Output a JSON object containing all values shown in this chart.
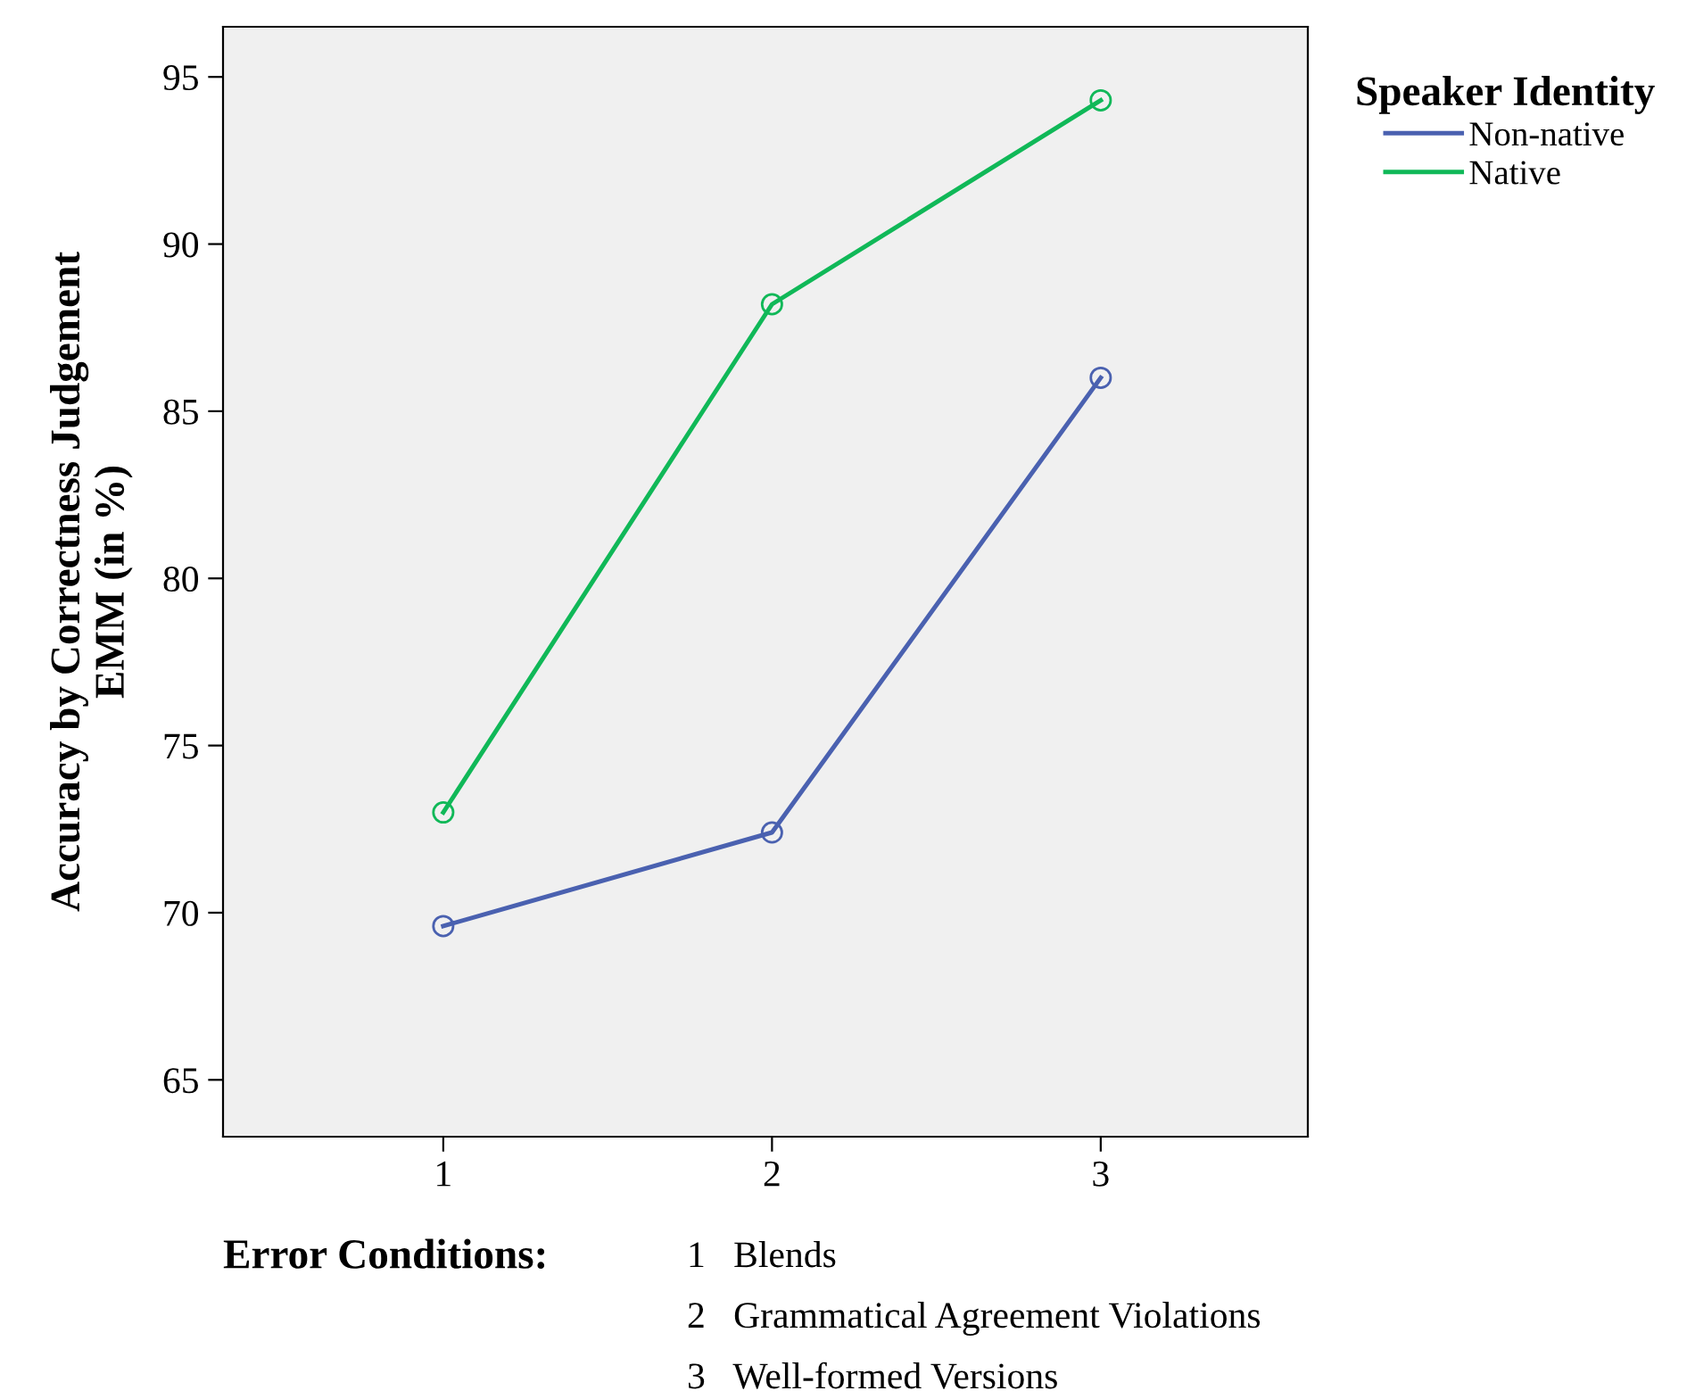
{
  "chart_data": {
    "type": "line",
    "ylabel": "Accuracy by Correctness Judgement\nEMM (in %)",
    "legend_title": "Speaker Identity",
    "categories": [
      "1",
      "2",
      "3"
    ],
    "series": [
      {
        "name": "Non-native",
        "color": "#4a61b0",
        "values": [
          69.6,
          72.4,
          86.0
        ]
      },
      {
        "name": "Native",
        "color": "#10b858",
        "values": [
          73.0,
          88.2,
          94.3
        ]
      }
    ],
    "ylim": [
      63.3,
      96.5
    ],
    "yticks": [
      65,
      70,
      75,
      80,
      85,
      90,
      95
    ],
    "marker": "circle",
    "line_style": "solid",
    "grid": false,
    "legend": "top right",
    "annotations": [
      "Error Conditions:",
      "1   Blends",
      "2   Grammatical Agreement Violations",
      "3   Well-formed Versions"
    ]
  }
}
